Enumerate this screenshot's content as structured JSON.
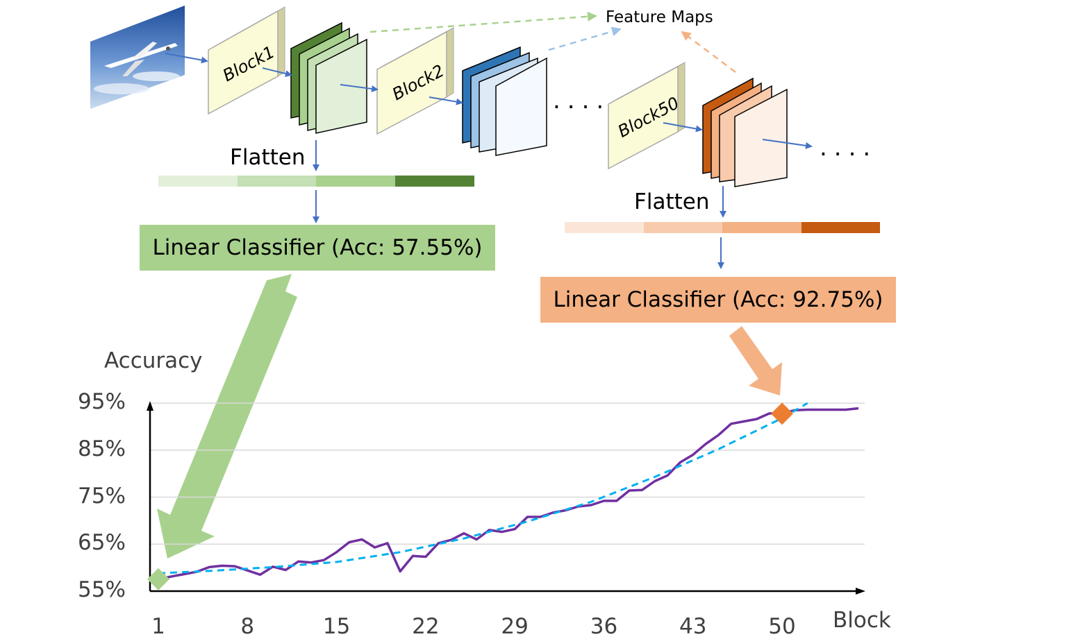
{
  "diagram": {
    "feature_maps_label": "Feature Maps",
    "blocks": [
      "Block1",
      "Block2",
      "Block50"
    ],
    "flatten_label": "Flatten",
    "classifiers": [
      {
        "label": "Linear Classifier (Acc: 57.55%)",
        "color": "#a9d18e"
      },
      {
        "label": "Linear Classifier (Acc: 92.75%)",
        "color": "#f4b183"
      }
    ],
    "ellipsis": "....",
    "colors": {
      "green_dark": "#548235",
      "green_mid": "#a9d18e",
      "green_light": "#c5e0b4",
      "green_pale": "#e2f0d9",
      "blue_dark": "#2e75b6",
      "blue_mid": "#9dc3e6",
      "blue_light": "#deebf7",
      "orange_dark": "#c55a11",
      "orange_mid": "#f4b183",
      "orange_light": "#f8cbad",
      "orange_pale": "#fbe5d6",
      "block_fill": "#fbfbd7",
      "arrow_blue": "#4472c4"
    }
  },
  "chart_data": {
    "type": "line",
    "ylabel": "Accuracy",
    "xlabel": "Block",
    "x_ticks": [
      1,
      8,
      15,
      22,
      29,
      36,
      43,
      50
    ],
    "y_ticks": [
      "95%",
      "85%",
      "75%",
      "65%",
      "55%"
    ],
    "ylim": [
      55,
      95
    ],
    "xlim": [
      1,
      56
    ],
    "grid": true,
    "series": [
      {
        "style": "solid",
        "color": "#7030a0",
        "x": [
          1,
          2,
          3,
          4,
          5,
          6,
          7,
          8,
          9,
          10,
          11,
          12,
          13,
          14,
          15,
          16,
          17,
          18,
          19,
          20,
          21,
          22,
          23,
          24,
          25,
          26,
          27,
          28,
          29,
          30,
          31,
          32,
          33,
          34,
          35,
          36,
          37,
          38,
          39,
          40,
          41,
          42,
          43,
          44,
          45,
          46,
          47,
          48,
          49,
          50,
          51,
          52,
          53,
          54,
          55,
          56
        ],
        "values": [
          57.5,
          58.1,
          58.6,
          59.1,
          60.1,
          60.4,
          60.3,
          59.4,
          58.5,
          60.2,
          59.5,
          61.3,
          61.1,
          61.6,
          63.3,
          65.4,
          66,
          64.3,
          65.2,
          59.2,
          62.5,
          62.3,
          65.2,
          65.9,
          67.3,
          66,
          68,
          67.6,
          68.2,
          70.8,
          70.8,
          71.7,
          72.2,
          73,
          73.3,
          74.2,
          74.2,
          76.4,
          76.5,
          78.4,
          79.6,
          82.4,
          84,
          86.3,
          88.2,
          90.6,
          91.1,
          91.6,
          92.8,
          92.8,
          93.5,
          93.6,
          93.6,
          93.6,
          93.6,
          93.9
        ]
      },
      {
        "style": "dashed",
        "color": "#00b0f0",
        "x": [
          1,
          5,
          10,
          15,
          20,
          25,
          30,
          35,
          40,
          45,
          50,
          52
        ],
        "values": [
          58.8,
          59.3,
          60.1,
          61.2,
          63.3,
          66.2,
          69.8,
          74,
          79.3,
          85.2,
          91.8,
          95
        ]
      }
    ],
    "markers": [
      {
        "x": 1,
        "y": 57.55,
        "color": "#a9d18e"
      },
      {
        "x": 50,
        "y": 92.75,
        "color": "#ed7d31"
      }
    ]
  }
}
